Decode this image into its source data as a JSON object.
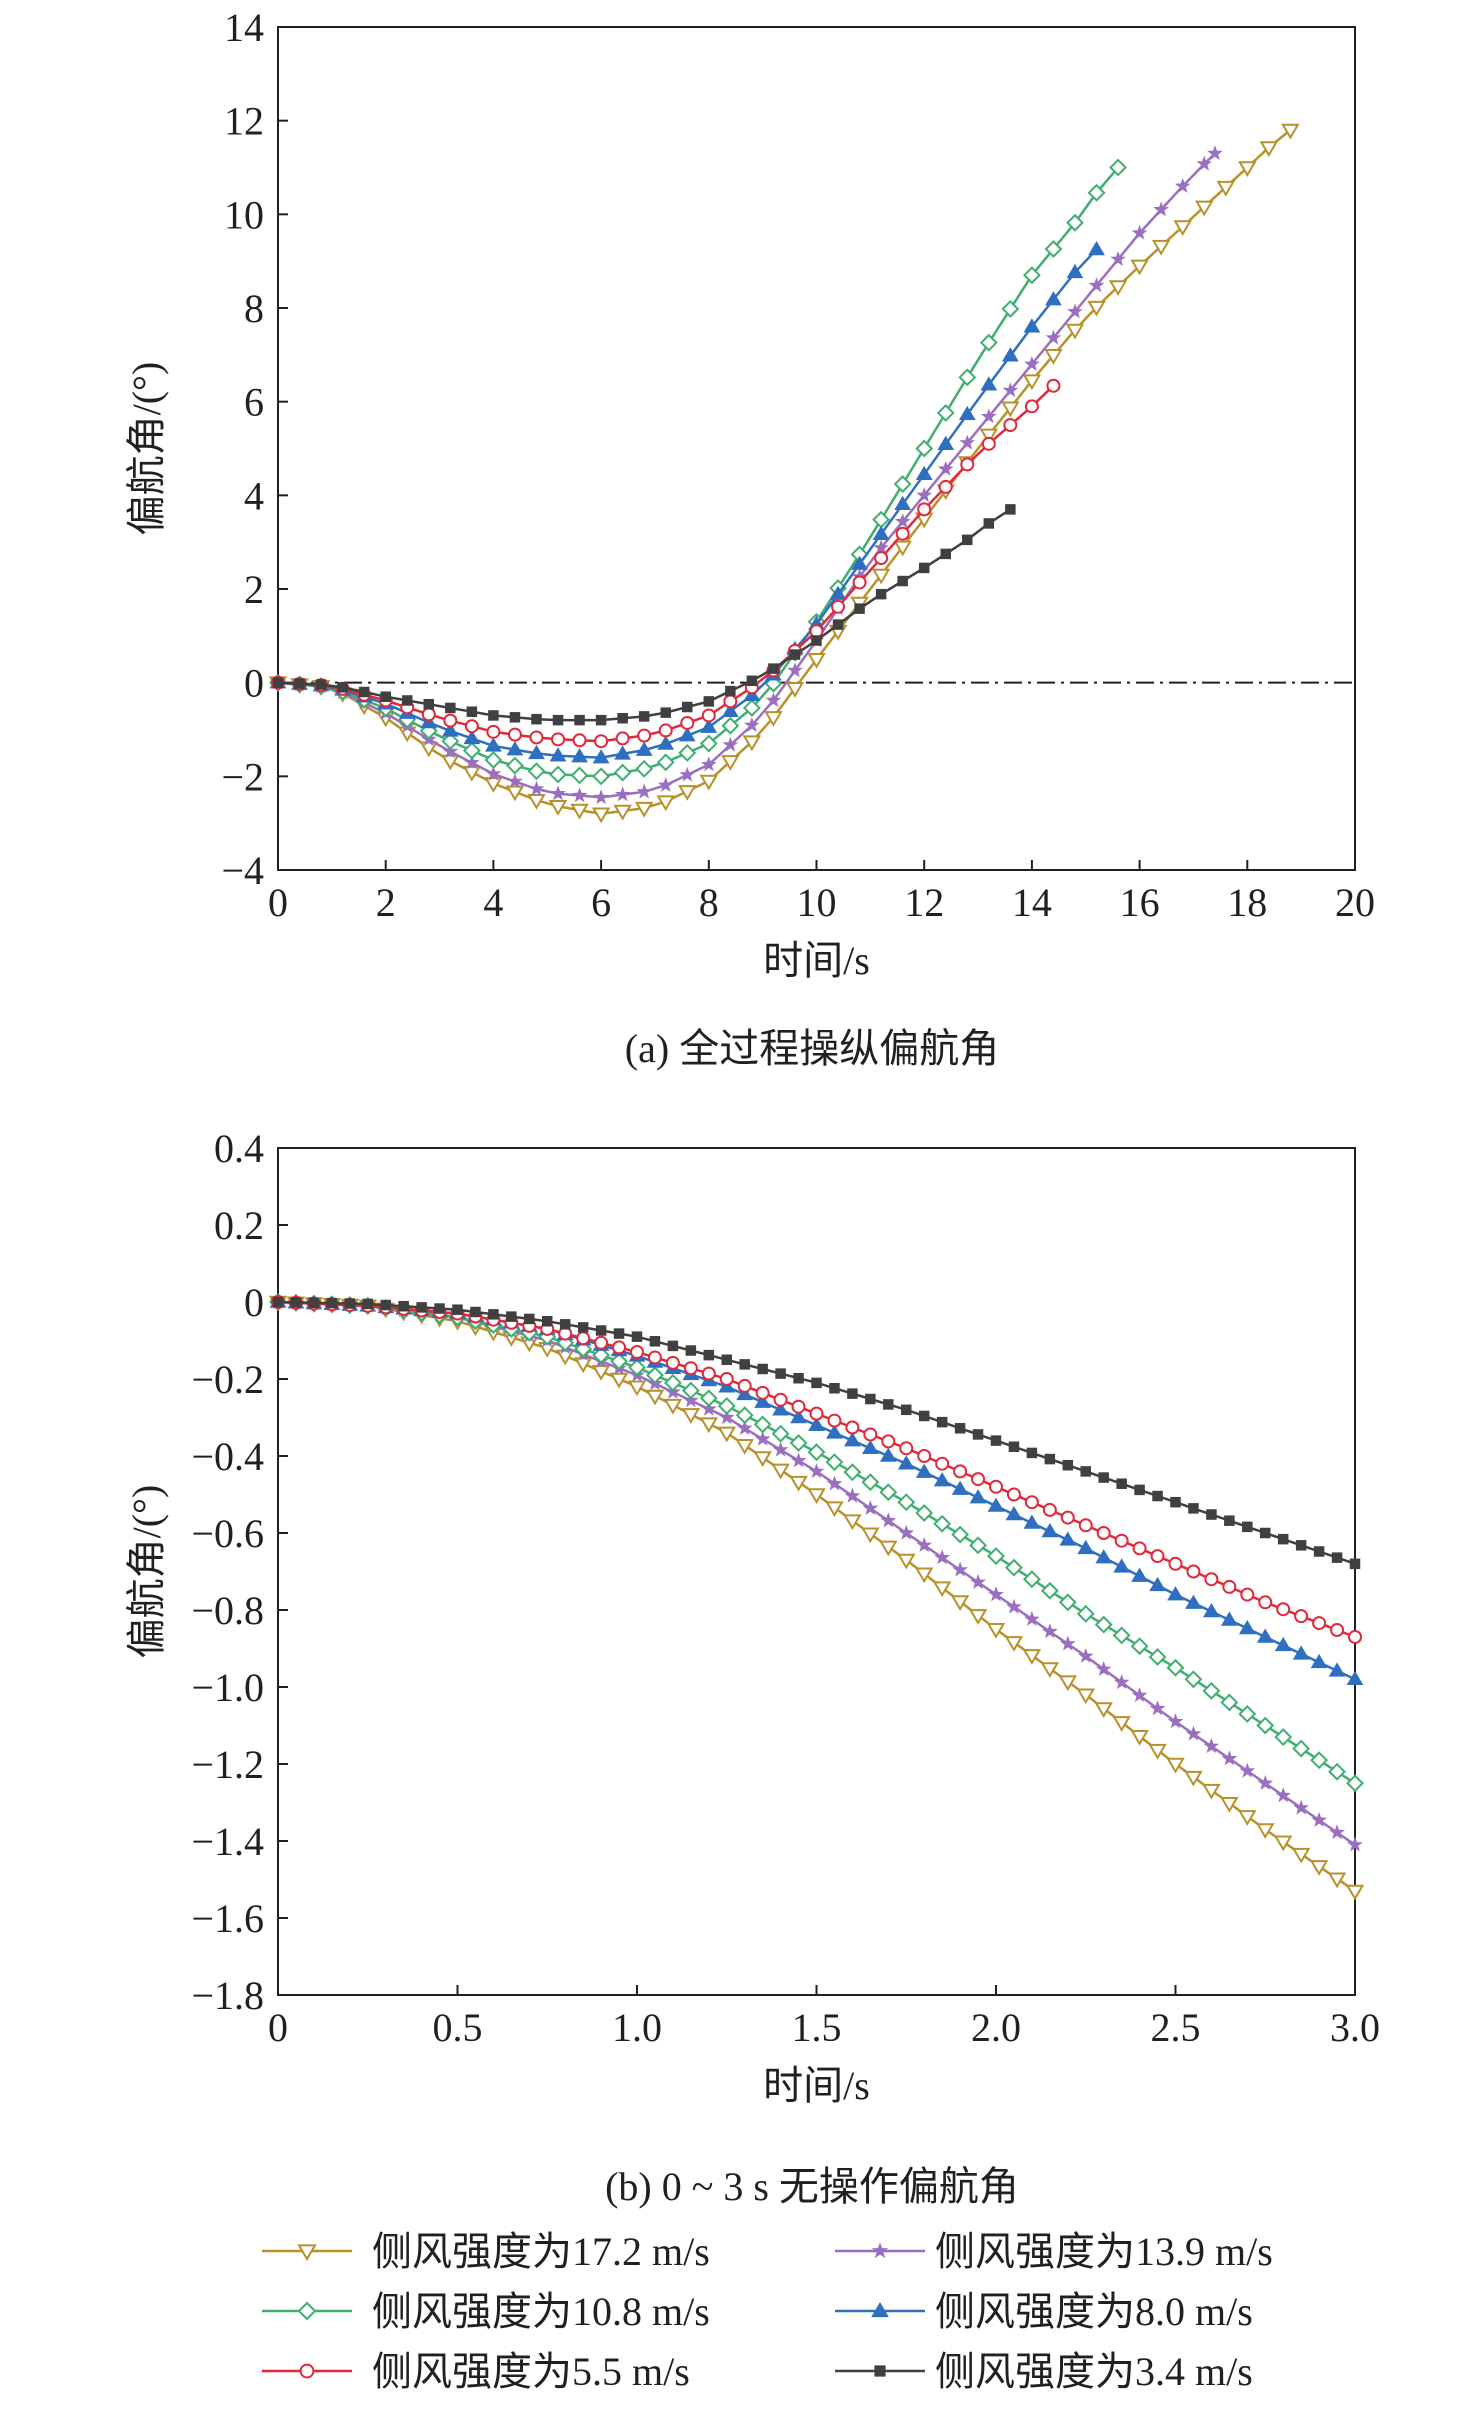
{
  "figure": {
    "series_names": [
      "侧风强度为17.2 m/s",
      "侧风强度为13.9 m/s",
      "侧风强度为10.8 m/s",
      "侧风强度为8.0 m/s",
      "侧风强度为5.5 m/s",
      "侧风强度为3.4 m/s"
    ],
    "series_colors": [
      "#b8912b",
      "#9b6fbf",
      "#3fae6e",
      "#2e6fc0",
      "#e02a3c",
      "#404040"
    ],
    "series_markers": [
      "triangle-down-open",
      "star",
      "diamond-open",
      "triangle-up",
      "circle-open",
      "square"
    ]
  },
  "chart_data": [
    {
      "type": "line",
      "title": "(a) 全过程操纵偏航角",
      "xlabel": "时间/s",
      "ylabel": "偏航角/(°)",
      "xlim": [
        0,
        20
      ],
      "ylim": [
        -4,
        14
      ],
      "xticks": [
        0,
        2,
        4,
        6,
        8,
        10,
        12,
        14,
        16,
        18,
        20
      ],
      "yticks": [
        -4,
        -2,
        0,
        2,
        4,
        6,
        8,
        10,
        12,
        14
      ],
      "xtick_labels": [
        "0",
        "2",
        "4",
        "6",
        "8",
        "10",
        "12",
        "14",
        "16",
        "18",
        "20"
      ],
      "ytick_labels": [
        "−4",
        "−2",
        "0",
        "2",
        "4",
        "6",
        "8",
        "10",
        "12",
        "14"
      ],
      "reference_line": {
        "y": 0,
        "style": "dash-dot"
      },
      "marker_step": 0.4,
      "series": [
        {
          "name": "侧风强度为17.2 m/s",
          "x": [
            0,
            1,
            2,
            3,
            4,
            5,
            6,
            7,
            8,
            9,
            10,
            11,
            12,
            13,
            14,
            15,
            16,
            17,
            18,
            18.75
          ],
          "y": [
            0,
            -0.1,
            -0.75,
            -1.55,
            -2.15,
            -2.6,
            -2.8,
            -2.65,
            -2.1,
            -1.05,
            0.5,
            2.0,
            3.5,
            5.0,
            6.45,
            7.8,
            8.9,
            9.95,
            11.0,
            11.8
          ]
        },
        {
          "name": "侧风强度为13.9 m/s",
          "x": [
            0,
            1,
            2,
            3,
            4,
            5,
            6,
            7,
            8,
            9,
            10,
            11,
            12,
            13,
            14,
            15,
            16,
            17,
            17.4
          ],
          "y": [
            0,
            -0.1,
            -0.65,
            -1.35,
            -1.95,
            -2.35,
            -2.45,
            -2.3,
            -1.75,
            -0.7,
            0.9,
            2.6,
            4.0,
            5.4,
            6.8,
            8.2,
            9.6,
            10.85,
            11.3
          ]
        },
        {
          "name": "侧风强度为10.8 m/s",
          "x": [
            0,
            1,
            2,
            3,
            4,
            5,
            6,
            7,
            8,
            9,
            10,
            11,
            12,
            13,
            14,
            15,
            15.5
          ],
          "y": [
            0,
            -0.1,
            -0.55,
            -1.15,
            -1.65,
            -1.95,
            -2.0,
            -1.8,
            -1.3,
            -0.35,
            1.3,
            3.1,
            5.0,
            6.9,
            8.7,
            10.1,
            11.0
          ]
        },
        {
          "name": "侧风强度为8.0 m/s",
          "x": [
            0,
            1,
            2,
            3,
            4,
            5,
            6,
            7,
            8,
            9,
            10,
            11,
            12,
            13,
            14,
            15,
            15.1
          ],
          "y": [
            0,
            -0.08,
            -0.45,
            -0.95,
            -1.35,
            -1.55,
            -1.6,
            -1.4,
            -0.95,
            -0.1,
            1.25,
            2.85,
            4.45,
            6.05,
            7.6,
            9.05,
            9.25
          ]
        },
        {
          "name": "侧风强度为5.5 m/s",
          "x": [
            0,
            1,
            2,
            3,
            4,
            5,
            6,
            7,
            8,
            9,
            10,
            11,
            12,
            13,
            14,
            14.5
          ],
          "y": [
            0,
            -0.07,
            -0.38,
            -0.75,
            -1.05,
            -1.2,
            -1.25,
            -1.1,
            -0.7,
            0.05,
            1.1,
            2.4,
            3.7,
            4.9,
            5.9,
            6.45
          ]
        },
        {
          "name": "侧风强度为3.4 m/s",
          "x": [
            0,
            1,
            2,
            3,
            4,
            5,
            6,
            7,
            8,
            9,
            10,
            11,
            12,
            13,
            13.5
          ],
          "y": [
            0,
            -0.05,
            -0.3,
            -0.5,
            -0.7,
            -0.8,
            -0.8,
            -0.7,
            -0.4,
            0.15,
            0.9,
            1.75,
            2.45,
            3.2,
            3.7
          ]
        }
      ]
    },
    {
      "type": "line",
      "title": "(b) 0 ~ 3 s 无操作偏航角",
      "xlabel": "时间/s",
      "ylabel": "偏航角/(°)",
      "xlim": [
        0,
        3
      ],
      "ylim": [
        -1.8,
        0.4
      ],
      "xticks": [
        0,
        0.5,
        1.0,
        1.5,
        2.0,
        2.5,
        3.0
      ],
      "yticks": [
        -1.8,
        -1.6,
        -1.4,
        -1.2,
        -1.0,
        -0.8,
        -0.6,
        -0.4,
        -0.2,
        0,
        0.2,
        0.4
      ],
      "xtick_labels": [
        "0",
        "0.5",
        "1.0",
        "1.5",
        "2.0",
        "2.5",
        "3.0"
      ],
      "ytick_labels": [
        "−1.8",
        "−1.6",
        "−1.4",
        "−1.2",
        "−1.0",
        "−0.8",
        "−0.6",
        "−0.4",
        "−0.2",
        "0",
        "0.2",
        "0.4"
      ],
      "marker_step": 0.05,
      "series": [
        {
          "name": "侧风强度为17.2 m/s",
          "x": [
            0,
            0.25,
            0.5,
            0.75,
            1.0,
            1.25,
            1.5,
            1.75,
            2.0,
            2.25,
            2.5,
            2.75,
            3.0
          ],
          "y": [
            0,
            -0.01,
            -0.05,
            -0.12,
            -0.22,
            -0.34,
            -0.5,
            -0.67,
            -0.85,
            -1.02,
            -1.2,
            -1.37,
            -1.53
          ]
        },
        {
          "name": "侧风强度为13.9 m/s",
          "x": [
            0,
            0.25,
            0.5,
            0.75,
            1.0,
            1.25,
            1.5,
            1.75,
            2.0,
            2.25,
            2.5,
            2.75,
            3.0
          ],
          "y": [
            0,
            -0.01,
            -0.04,
            -0.1,
            -0.19,
            -0.3,
            -0.44,
            -0.6,
            -0.76,
            -0.92,
            -1.09,
            -1.25,
            -1.41
          ]
        },
        {
          "name": "侧风强度为10.8 m/s",
          "x": [
            0,
            0.25,
            0.5,
            0.75,
            1.0,
            1.25,
            1.5,
            1.75,
            2.0,
            2.25,
            2.5,
            2.75,
            3.0
          ],
          "y": [
            0,
            -0.01,
            -0.04,
            -0.09,
            -0.17,
            -0.27,
            -0.39,
            -0.52,
            -0.66,
            -0.81,
            -0.95,
            -1.1,
            -1.25
          ]
        },
        {
          "name": "侧风强度为8.0 m/s",
          "x": [
            0,
            0.25,
            0.5,
            0.75,
            1.0,
            1.25,
            1.5,
            1.75,
            2.0,
            2.25,
            2.5,
            2.75,
            3.0
          ],
          "y": [
            0,
            -0.01,
            -0.03,
            -0.07,
            -0.14,
            -0.22,
            -0.32,
            -0.42,
            -0.53,
            -0.64,
            -0.76,
            -0.87,
            -0.98
          ]
        },
        {
          "name": "侧风强度为5.5 m/s",
          "x": [
            0,
            0.25,
            0.5,
            0.75,
            1.0,
            1.25,
            1.5,
            1.75,
            2.0,
            2.25,
            2.5,
            2.75,
            3.0
          ],
          "y": [
            0,
            -0.01,
            -0.03,
            -0.07,
            -0.13,
            -0.2,
            -0.29,
            -0.38,
            -0.48,
            -0.58,
            -0.68,
            -0.78,
            -0.87
          ]
        },
        {
          "name": "侧风强度为3.4 m/s",
          "x": [
            0,
            0.25,
            0.5,
            0.75,
            1.0,
            1.25,
            1.5,
            1.75,
            2.0,
            2.25,
            2.5,
            2.75,
            3.0
          ],
          "y": [
            0,
            -0.005,
            -0.02,
            -0.05,
            -0.09,
            -0.15,
            -0.21,
            -0.28,
            -0.36,
            -0.44,
            -0.52,
            -0.6,
            -0.68
          ]
        }
      ]
    }
  ]
}
